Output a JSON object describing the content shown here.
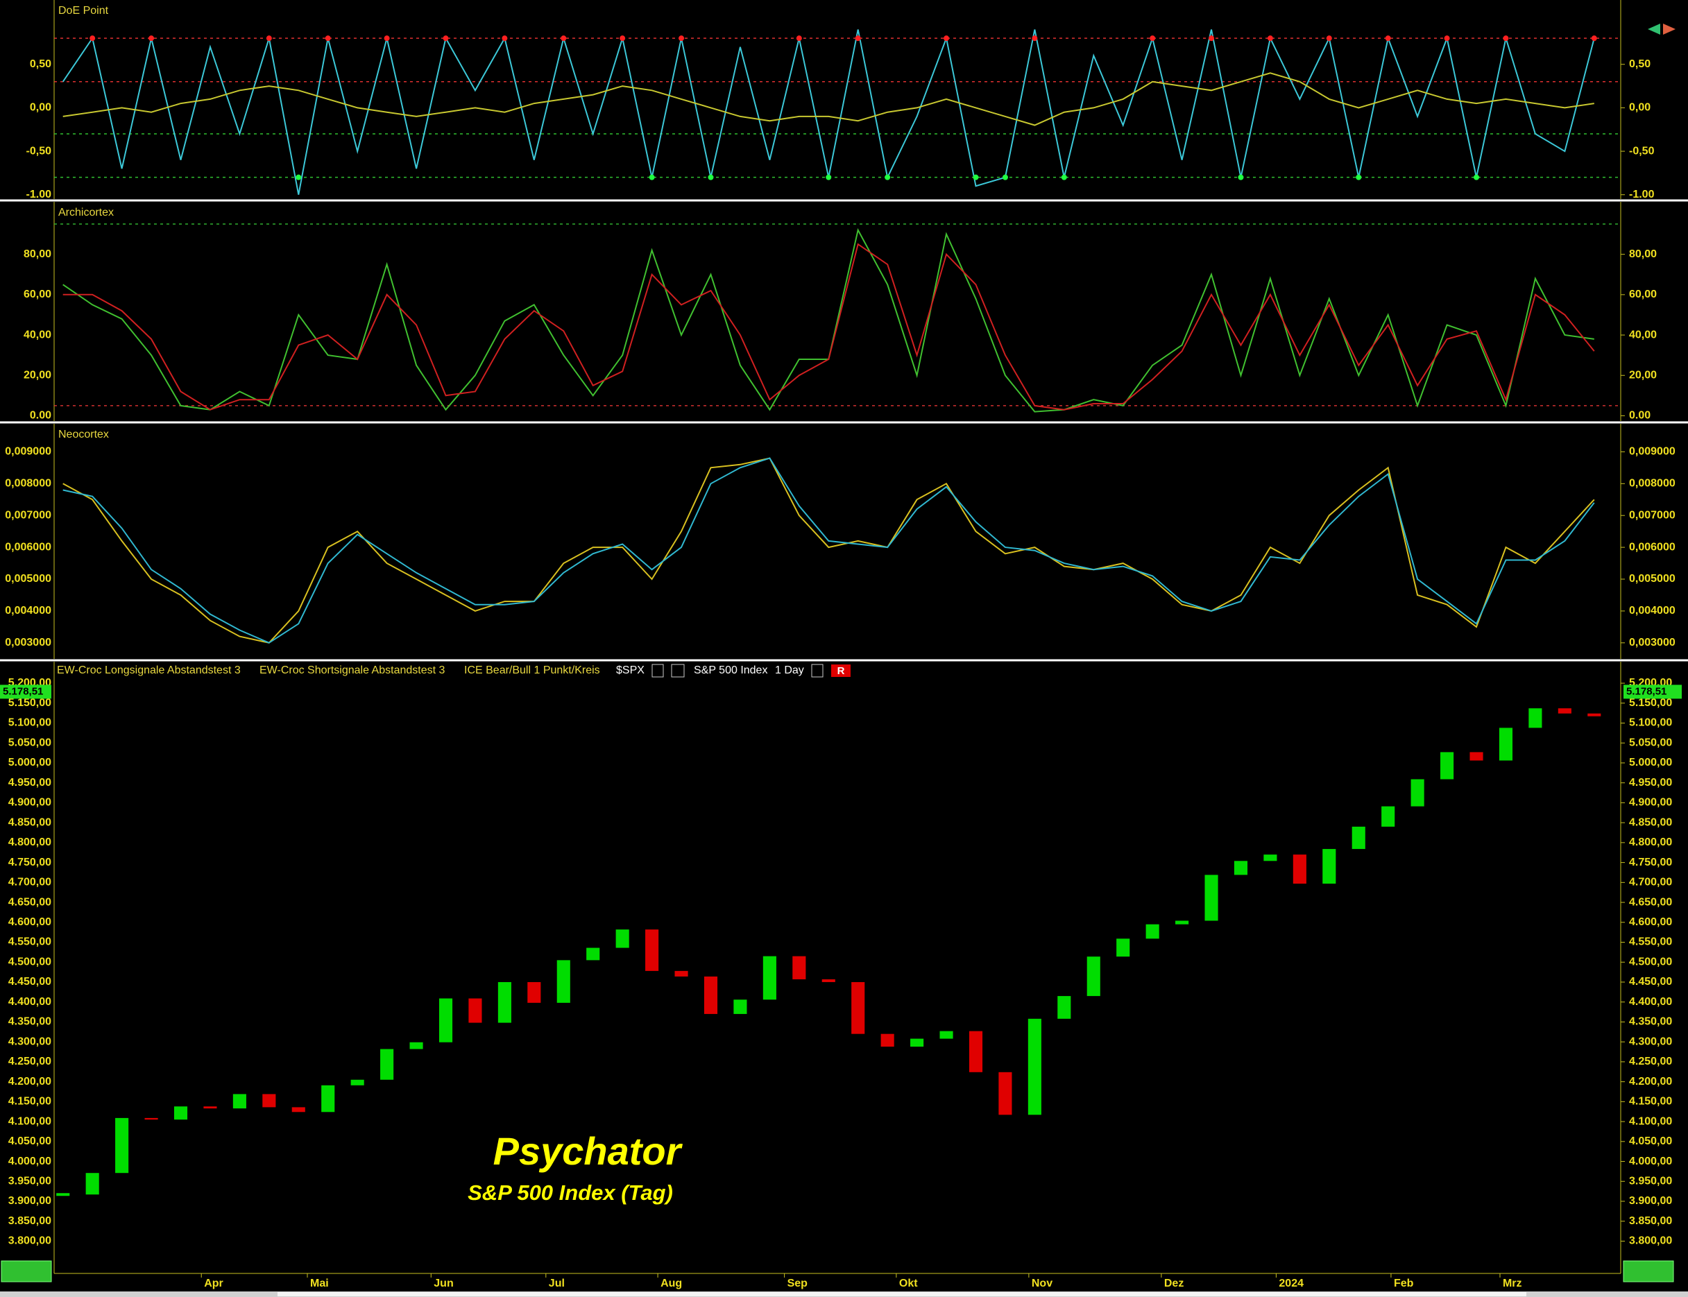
{
  "chart_data": [
    {
      "type": "line",
      "title": "DoE Point",
      "xlim": [
        -0.3,
        52.9
      ],
      "ylim": [
        -1.05,
        1.24
      ],
      "yticks": [
        {
          "value": 0.5,
          "label": "0,50"
        },
        {
          "value": 0,
          "label": "0,00"
        },
        {
          "value": -0.5,
          "label": "-0,50"
        },
        {
          "value": -1,
          "label": "-1.00"
        }
      ],
      "hlines": [
        {
          "value": 0.8,
          "color": "#e03030"
        },
        {
          "value": 0.3,
          "color": "#e03030"
        },
        {
          "value": -0.3,
          "color": "#30c030"
        },
        {
          "value": -0.8,
          "color": "#30c030"
        }
      ],
      "series": [
        {
          "color": "#3cc8d8",
          "values": [
            0.3,
            0.8,
            -0.7,
            0.8,
            -0.6,
            0.7,
            -0.3,
            0.8,
            -1.0,
            0.8,
            -0.5,
            0.8,
            -0.7,
            0.8,
            0.2,
            0.8,
            -0.6,
            0.8,
            -0.3,
            0.8,
            -0.8,
            0.8,
            -0.8,
            0.7,
            -0.6,
            0.8,
            -0.8,
            0.9,
            -0.8,
            -0.1,
            0.8,
            -0.9,
            -0.8,
            0.9,
            -0.8,
            0.6,
            -0.2,
            0.8,
            -0.6,
            0.9,
            -0.8,
            0.8,
            0.1,
            0.8,
            -0.8,
            0.8,
            -0.1,
            0.8,
            -0.8,
            0.8,
            -0.3,
            -0.5,
            0.8
          ]
        },
        {
          "color": "#c8c830",
          "values": [
            -0.1,
            -0.05,
            0.0,
            -0.05,
            0.05,
            0.1,
            0.2,
            0.25,
            0.2,
            0.1,
            0.0,
            -0.05,
            -0.1,
            -0.05,
            0.0,
            -0.05,
            0.05,
            0.1,
            0.15,
            0.25,
            0.2,
            0.1,
            0.0,
            -0.1,
            -0.15,
            -0.1,
            -0.1,
            -0.15,
            -0.05,
            0.0,
            0.1,
            0.0,
            -0.1,
            -0.2,
            -0.05,
            0.0,
            0.1,
            0.3,
            0.25,
            0.2,
            0.3,
            0.4,
            0.3,
            0.1,
            0.0,
            0.1,
            0.2,
            0.1,
            0.05,
            0.1,
            0.05,
            0.0,
            0.05
          ]
        }
      ]
    },
    {
      "type": "line",
      "title": "Archicortex",
      "xlim": [
        -0.3,
        52.9
      ],
      "ylim": [
        -2.6,
        106
      ],
      "yticks": [
        {
          "value": 0,
          "label": "0.00"
        },
        {
          "value": 20,
          "label": "20,00"
        },
        {
          "value": 40,
          "label": "40,00"
        },
        {
          "value": 60,
          "label": "60,00"
        },
        {
          "value": 80,
          "label": "80,00"
        }
      ],
      "hlines": [
        {
          "value": 95,
          "color": "#30b030"
        },
        {
          "value": 5,
          "color": "#d03030"
        }
      ],
      "series": [
        {
          "color": "#40c030",
          "values": [
            65,
            55,
            48,
            30,
            5,
            3,
            12,
            5,
            50,
            30,
            28,
            75,
            25,
            3,
            20,
            47,
            55,
            30,
            10,
            30,
            82,
            40,
            70,
            25,
            3,
            28,
            28,
            92,
            65,
            20,
            90,
            58,
            20,
            2,
            3,
            8,
            5,
            25,
            35,
            70,
            20,
            68,
            20,
            58,
            20,
            50,
            5,
            45,
            40,
            5,
            68,
            40,
            38
          ]
        },
        {
          "color": "#d02020",
          "values": [
            60,
            60,
            52,
            38,
            12,
            3,
            8,
            8,
            35,
            40,
            28,
            60,
            45,
            10,
            12,
            38,
            52,
            42,
            15,
            22,
            70,
            55,
            62,
            40,
            8,
            20,
            28,
            85,
            75,
            30,
            80,
            65,
            30,
            5,
            3,
            6,
            6,
            18,
            32,
            60,
            35,
            60,
            30,
            55,
            25,
            45,
            15,
            38,
            42,
            8,
            60,
            50,
            32
          ]
        }
      ]
    },
    {
      "type": "line",
      "title": "Neocortex",
      "xlim": [
        -0.3,
        52.9
      ],
      "ylim": [
        0.002495,
        0.00988
      ],
      "yticks": [
        {
          "value": 0.003,
          "label": "0,003000"
        },
        {
          "value": 0.004,
          "label": "0,004000"
        },
        {
          "value": 0.005,
          "label": "0,005000"
        },
        {
          "value": 0.006,
          "label": "0,006000"
        },
        {
          "value": 0.007,
          "label": "0,007000"
        },
        {
          "value": 0.008,
          "label": "0,008000"
        },
        {
          "value": 0.009,
          "label": "0,009000"
        }
      ],
      "hlines": [],
      "series": [
        {
          "color": "#d8c020",
          "values": [
            0.008,
            0.0075,
            0.0062,
            0.005,
            0.0045,
            0.0037,
            0.0032,
            0.003,
            0.004,
            0.006,
            0.0065,
            0.0055,
            0.005,
            0.0045,
            0.004,
            0.0043,
            0.0043,
            0.0055,
            0.006,
            0.006,
            0.005,
            0.0065,
            0.0085,
            0.0086,
            0.0088,
            0.007,
            0.006,
            0.0062,
            0.006,
            0.0075,
            0.008,
            0.0065,
            0.0058,
            0.006,
            0.0054,
            0.0053,
            0.0055,
            0.005,
            0.0042,
            0.004,
            0.0045,
            0.006,
            0.0055,
            0.007,
            0.0078,
            0.0085,
            0.0045,
            0.0042,
            0.0035,
            0.006,
            0.0055,
            0.0065,
            0.0075
          ]
        },
        {
          "color": "#30b8d0",
          "values": [
            0.0078,
            0.0076,
            0.0066,
            0.0053,
            0.0047,
            0.0039,
            0.0034,
            0.003,
            0.0036,
            0.0055,
            0.0064,
            0.0058,
            0.0052,
            0.0047,
            0.0042,
            0.0042,
            0.0043,
            0.0052,
            0.0058,
            0.0061,
            0.0053,
            0.006,
            0.008,
            0.0085,
            0.0088,
            0.0073,
            0.0062,
            0.0061,
            0.006,
            0.0072,
            0.0079,
            0.0068,
            0.006,
            0.0059,
            0.0055,
            0.0053,
            0.0054,
            0.0051,
            0.0043,
            0.004,
            0.0043,
            0.0057,
            0.0056,
            0.0067,
            0.0076,
            0.0083,
            0.005,
            0.0043,
            0.0036,
            0.0056,
            0.0056,
            0.0062,
            0.0074
          ]
        }
      ]
    },
    {
      "type": "candlestick",
      "indicators": [
        "EW-Croc Longsignale Abstandstest 3",
        "EW-Croc Shortsignale Abstandstest 3",
        "ICE Bear/Bull 1 Punkt/Kreis"
      ],
      "symbol": "$SPX",
      "instrument": "S&P 500 Index",
      "interval": "1 Day",
      "button": "R",
      "title": "Psychator",
      "subtitle": "S&P 500 Index (Tag)",
      "last_price": {
        "value": 5178.51,
        "label": "5.178,51"
      },
      "up_color": "#00dd00",
      "down_color": "#e00000",
      "xlim": [
        -0.3,
        52.9
      ],
      "ylim": [
        3719,
        5254
      ],
      "xticks": [
        {
          "value": 4.7,
          "label": "Apr"
        },
        {
          "value": 8.3,
          "label": "Mai"
        },
        {
          "value": 12.5,
          "label": "Jun"
        },
        {
          "value": 16.4,
          "label": "Jul"
        },
        {
          "value": 20.2,
          "label": "Aug"
        },
        {
          "value": 24.5,
          "label": "Sep"
        },
        {
          "value": 28.3,
          "label": "Okt"
        },
        {
          "value": 32.8,
          "label": "Nov"
        },
        {
          "value": 37.3,
          "label": "Dez"
        },
        {
          "value": 41.2,
          "label": "2024"
        },
        {
          "value": 45.1,
          "label": "Feb"
        },
        {
          "value": 48.8,
          "label": "Mrz"
        }
      ],
      "yticks": [
        {
          "value": 3800,
          "label": "3.800,00"
        },
        {
          "value": 3850,
          "label": "3.850,00"
        },
        {
          "value": 3900,
          "label": "3.900,00"
        },
        {
          "value": 3950,
          "label": "3.950,00"
        },
        {
          "value": 4000,
          "label": "4.000,00"
        },
        {
          "value": 4050,
          "label": "4.050,00"
        },
        {
          "value": 4100,
          "label": "4.100,00"
        },
        {
          "value": 4150,
          "label": "4.150,00"
        },
        {
          "value": 4200,
          "label": "4.200,00"
        },
        {
          "value": 4250,
          "label": "4.250,00"
        },
        {
          "value": 4300,
          "label": "4.300,00"
        },
        {
          "value": 4350,
          "label": "4.350,00"
        },
        {
          "value": 4400,
          "label": "4.400,00"
        },
        {
          "value": 4450,
          "label": "4.450,00"
        },
        {
          "value": 4500,
          "label": "4.500,00"
        },
        {
          "value": 4550,
          "label": "4.550,00"
        },
        {
          "value": 4600,
          "label": "4.600,00"
        },
        {
          "value": 4650,
          "label": "4.650,00"
        },
        {
          "value": 4700,
          "label": "4.700,00"
        },
        {
          "value": 4750,
          "label": "4.750,00"
        },
        {
          "value": 4800,
          "label": "4.800,00"
        },
        {
          "value": 4850,
          "label": "4.850,00"
        },
        {
          "value": 4900,
          "label": "4.900,00"
        },
        {
          "value": 4950,
          "label": "4.950,00"
        },
        {
          "value": 5000,
          "label": "5.000,00"
        },
        {
          "value": 5050,
          "label": "5.050,00"
        },
        {
          "value": 5100,
          "label": "5.100,00"
        },
        {
          "value": 5150,
          "label": "5.150,00"
        },
        {
          "value": 5200,
          "label": "5.200,00"
        }
      ],
      "values": [
        3917,
        3971,
        4109,
        4105,
        4138,
        4133,
        4169,
        4136,
        4124,
        4191,
        4205,
        4282,
        4299,
        4409,
        4348,
        4450,
        4398,
        4505,
        4536,
        4582,
        4478,
        4464,
        4370,
        4406,
        4515,
        4457,
        4450,
        4320,
        4288,
        4308,
        4327,
        4224,
        4117,
        4358,
        4415,
        4514,
        4559,
        4595,
        4604,
        4719,
        4754,
        4770,
        4697,
        4784,
        4840,
        4891,
        4959,
        5027,
        5006,
        5088,
        5137,
        5124,
        5117
      ]
    }
  ]
}
